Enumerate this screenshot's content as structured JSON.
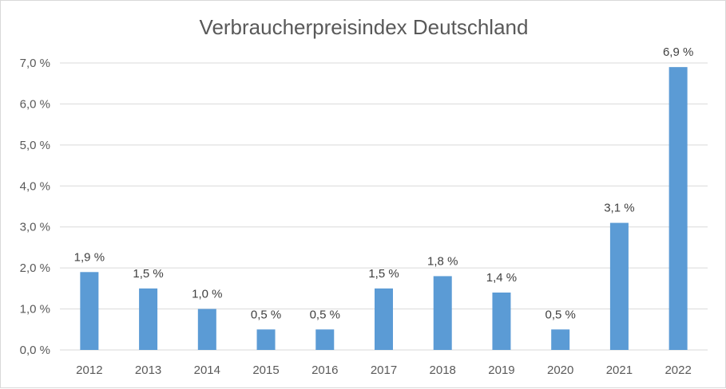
{
  "chart_data": {
    "type": "bar",
    "title": "Verbraucherpreisindex  Deutschland",
    "xlabel": "",
    "ylabel": "",
    "categories": [
      "2012",
      "2013",
      "2014",
      "2015",
      "2016",
      "2017",
      "2018",
      "2019",
      "2020",
      "2021",
      "2022"
    ],
    "values": [
      1.9,
      1.5,
      1.0,
      0.5,
      0.5,
      1.5,
      1.8,
      1.4,
      0.5,
      3.1,
      6.9
    ],
    "value_labels": [
      "1,9 %",
      "1,5 %",
      "1,0 %",
      "0,5 %",
      "0,5 %",
      "1,5 %",
      "1,8 %",
      "1,4 %",
      "0,5 %",
      "3,1 %",
      "6,9 %"
    ],
    "y_ticks": [
      0,
      1,
      2,
      3,
      4,
      5,
      6,
      7
    ],
    "y_tick_labels": [
      "0,0 %",
      "1,0 %",
      "2,0 %",
      "3,0 %",
      "4,0 %",
      "5,0 %",
      "6,0 %",
      "7,0 %"
    ],
    "ylim": [
      0,
      7
    ],
    "grid": true,
    "legend": "none",
    "colors": {
      "bar": "#5b9bd5",
      "grid": "#d9d9d9",
      "text": "#595959"
    }
  }
}
